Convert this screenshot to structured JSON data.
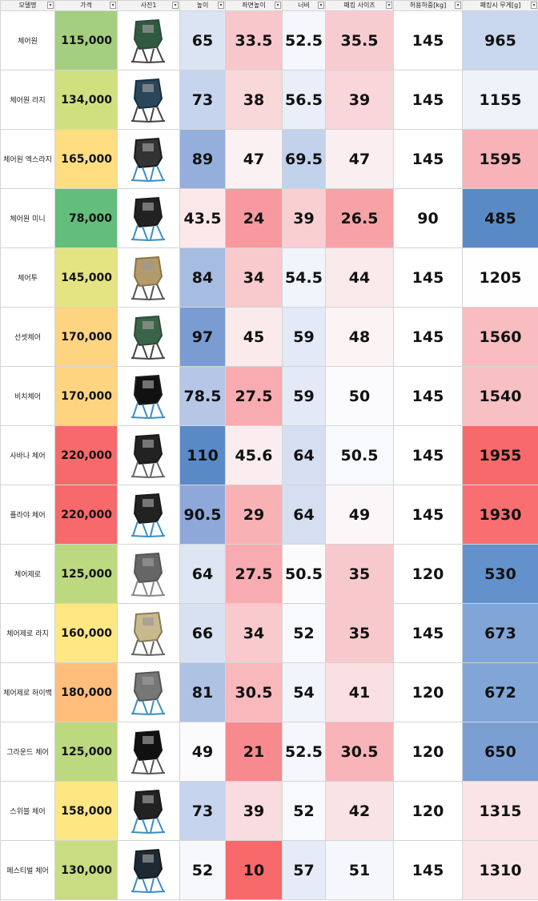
{
  "headers": [
    "모델명",
    "가격",
    "사진1",
    "높이",
    "좌면높이",
    "너비",
    "패킹 사이즈",
    "허용하중[kg]",
    "패킹시 무게[g]"
  ],
  "dropdown_glyph": "▾",
  "rows": [
    {
      "name": "체어원",
      "price": "115,000",
      "price_bg": "#a4cf7e",
      "img": {
        "frame": "#2f4a38",
        "seat": "#2f5a40",
        "legs": "#444"
      },
      "height": "65",
      "height_bg": "#dbe4f3",
      "seat_height": "33.5",
      "seat_height_bg": "#f8c7cb",
      "width": "52.5",
      "width_bg": "#f5f7fc",
      "pack": "35.5",
      "pack_bg": "#f7ccd0",
      "load": "145",
      "load_bg": "#ffffff",
      "weight": "965",
      "weight_bg": "#c8d6ee"
    },
    {
      "name": "체어원 라지",
      "price": "134,000",
      "price_bg": "#d1e07e",
      "img": {
        "frame": "#1a2e3e",
        "seat": "#29465a",
        "legs": "#444"
      },
      "height": "73",
      "height_bg": "#c7d4ed",
      "seat_height": "38",
      "seat_height_bg": "#f9d8da",
      "width": "56.5",
      "width_bg": "#e9eef8",
      "pack": "39",
      "pack_bg": "#f9d6d9",
      "load": "145",
      "load_bg": "#ffffff",
      "weight": "1155",
      "weight_bg": "#eef2f9"
    },
    {
      "name": "체어원 엑스라지",
      "price": "165,000",
      "price_bg": "#ffde82",
      "img": {
        "frame": "#1a1a1a",
        "seat": "#333333",
        "legs": "#3a8ec4"
      },
      "height": "89",
      "height_bg": "#94afdb",
      "seat_height": "47",
      "seat_height_bg": "#fbf1f3",
      "width": "69.5",
      "width_bg": "#c3d2ec",
      "pack": "47",
      "pack_bg": "#fbeef0",
      "load": "145",
      "load_bg": "#ffffff",
      "weight": "1595",
      "weight_bg": "#f8b3b8"
    },
    {
      "name": "체어원 미니",
      "price": "78,000",
      "price_bg": "#63be7b",
      "img": {
        "frame": "#1a1a1a",
        "seat": "#222222",
        "legs": "#3a8ec4"
      },
      "height": "43.5",
      "height_bg": "#fce8ea",
      "seat_height": "24",
      "seat_height_bg": "#f7999e",
      "width": "39",
      "width_bg": "#f9cfd2",
      "pack": "26.5",
      "pack_bg": "#f7a2a7",
      "load": "90",
      "load_bg": "#ffffff",
      "weight": "485",
      "weight_bg": "#5a8ac6"
    },
    {
      "name": "체어투",
      "price": "145,000",
      "price_bg": "#e5e483",
      "img": {
        "frame": "#8a7448",
        "seat": "#b39a6a",
        "legs": "#555"
      },
      "height": "84",
      "height_bg": "#a6bce1",
      "seat_height": "34",
      "seat_height_bg": "#f8cacd",
      "width": "54.5",
      "width_bg": "#f1f4fb",
      "pack": "44",
      "pack_bg": "#faeaec",
      "load": "145",
      "load_bg": "#ffffff",
      "weight": "1205",
      "weight_bg": "#fefeff"
    },
    {
      "name": "선셋체어",
      "price": "170,000",
      "price_bg": "#ffd481",
      "img": {
        "frame": "#2f4a38",
        "seat": "#3a6448",
        "legs": "#444"
      },
      "height": "97",
      "height_bg": "#7a9cd2",
      "seat_height": "45",
      "seat_height_bg": "#fbeaec",
      "width": "59",
      "width_bg": "#e3e9f6",
      "pack": "48",
      "pack_bg": "#fbf3f4",
      "load": "145",
      "load_bg": "#ffffff",
      "weight": "1560",
      "weight_bg": "#f9bcc0"
    },
    {
      "name": "비치체어",
      "price": "170,000",
      "price_bg": "#ffd481",
      "img": {
        "frame": "#1a1a1a",
        "seat": "#111111",
        "legs": "#3a8ec4"
      },
      "height": "78.5",
      "height_bg": "#b5c6e6",
      "seat_height": "27.5",
      "seat_height_bg": "#f8abb0",
      "width": "59",
      "width_bg": "#e3e9f6",
      "pack": "50",
      "pack_bg": "#fbfbfd",
      "load": "145",
      "load_bg": "#ffffff",
      "weight": "1540",
      "weight_bg": "#f9c0c4"
    },
    {
      "name": "사바나 체어",
      "price": "220,000",
      "price_bg": "#f8696b",
      "img": {
        "frame": "#1a1a1a",
        "seat": "#222222",
        "legs": "#666"
      },
      "height": "110",
      "height_bg": "#5a8ac6",
      "seat_height": "45.6",
      "seat_height_bg": "#fbedef",
      "width": "64",
      "width_bg": "#d5dff1",
      "pack": "50.5",
      "pack_bg": "#f7f9fc",
      "load": "145",
      "load_bg": "#ffffff",
      "weight": "1955",
      "weight_bg": "#f8696b"
    },
    {
      "name": "플라야 체어",
      "price": "220,000",
      "price_bg": "#f8696b",
      "img": {
        "frame": "#1a1a1a",
        "seat": "#222222",
        "legs": "#3a8ec4"
      },
      "height": "90.5",
      "height_bg": "#8ea9d9",
      "seat_height": "29",
      "seat_height_bg": "#f8b2b6",
      "width": "64",
      "width_bg": "#d5dff1",
      "pack": "49",
      "pack_bg": "#fbf7f8",
      "load": "145",
      "load_bg": "#ffffff",
      "weight": "1930",
      "weight_bg": "#f86e71"
    },
    {
      "name": "체어제로",
      "price": "125,000",
      "price_bg": "#bcd980",
      "img": {
        "frame": "#555555",
        "seat": "#666666",
        "legs": "#888"
      },
      "height": "64",
      "height_bg": "#dee6f4",
      "seat_height": "27.5",
      "seat_height_bg": "#f8abb0",
      "width": "50.5",
      "width_bg": "#fbfbfd",
      "pack": "35",
      "pack_bg": "#f7c9cd",
      "load": "120",
      "load_bg": "#ffffff",
      "weight": "530",
      "weight_bg": "#6391cb"
    },
    {
      "name": "체어제로 라지",
      "price": "160,000",
      "price_bg": "#ffe884",
      "img": {
        "frame": "#8a7a58",
        "seat": "#c9b98f",
        "legs": "#666"
      },
      "height": "66",
      "height_bg": "#d8e1f2",
      "seat_height": "34",
      "seat_height_bg": "#f8cacd",
      "width": "52",
      "width_bg": "#f7f9fd",
      "pack": "35",
      "pack_bg": "#f7c9cd",
      "load": "145",
      "load_bg": "#ffffff",
      "weight": "673",
      "weight_bg": "#81a5d6"
    },
    {
      "name": "체어제로 하이백",
      "price": "180,000",
      "price_bg": "#ffbe7b",
      "img": {
        "frame": "#555555",
        "seat": "#777777",
        "legs": "#3a8ec4"
      },
      "height": "81",
      "height_bg": "#aec2e4",
      "seat_height": "30.5",
      "seat_height_bg": "#f8b8bc",
      "width": "54",
      "width_bg": "#f1f4fb",
      "pack": "41",
      "pack_bg": "#f9dfe2",
      "load": "120",
      "load_bg": "#ffffff",
      "weight": "672",
      "weight_bg": "#81a5d6"
    },
    {
      "name": "그라운드 체어",
      "price": "125,000",
      "price_bg": "#bcd980",
      "img": {
        "frame": "#111111",
        "seat": "#111111",
        "legs": "#555"
      },
      "height": "49",
      "height_bg": "#fbfbfd",
      "seat_height": "21",
      "seat_height_bg": "#f78a8e",
      "width": "52.5",
      "width_bg": "#f5f7fc",
      "pack": "30.5",
      "pack_bg": "#f8b4b8",
      "load": "120",
      "load_bg": "#ffffff",
      "weight": "650",
      "weight_bg": "#7c9fd3"
    },
    {
      "name": "스위블 체어",
      "price": "158,000",
      "price_bg": "#fee683",
      "img": {
        "frame": "#1a1a1a",
        "seat": "#222222",
        "legs": "#3a8ec4"
      },
      "height": "73",
      "height_bg": "#c7d4ed",
      "seat_height": "39",
      "seat_height_bg": "#f9dcdf",
      "width": "52",
      "width_bg": "#f7f9fd",
      "pack": "42",
      "pack_bg": "#fae3e5",
      "load": "120",
      "load_bg": "#ffffff",
      "weight": "1315",
      "weight_bg": "#fae4e7"
    },
    {
      "name": "페스티벌 체어",
      "price": "130,000",
      "price_bg": "#c8dc81",
      "img": {
        "frame": "#1a1a1a",
        "seat": "#1e2a33",
        "legs": "#3a8ec4"
      },
      "height": "52",
      "height_bg": "#f6f8fc",
      "seat_height": "10",
      "seat_height_bg": "#f8696b",
      "width": "57",
      "width_bg": "#e6ecf7",
      "pack": "51",
      "pack_bg": "#f5f7fc",
      "load": "145",
      "load_bg": "#ffffff",
      "weight": "1310",
      "weight_bg": "#fae5e7"
    }
  ]
}
